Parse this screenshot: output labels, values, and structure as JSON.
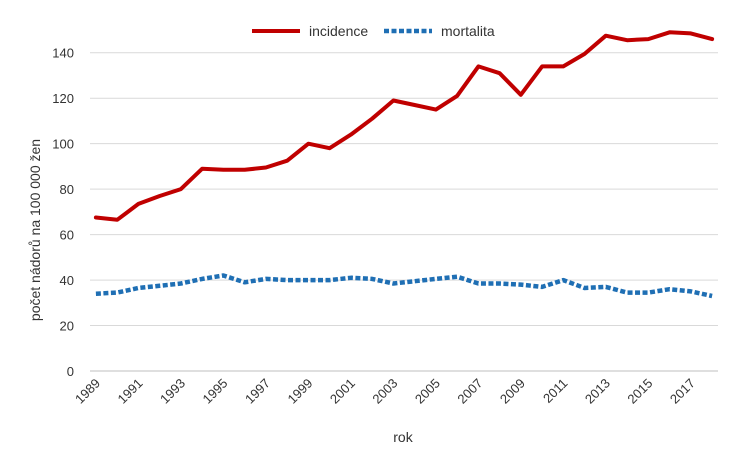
{
  "chart_data": {
    "type": "line",
    "title": "",
    "xlabel": "rok",
    "ylabel": "počet nádorů na 100 000 žen",
    "ylim": [
      0,
      150
    ],
    "yticks": [
      0,
      20,
      40,
      60,
      80,
      100,
      120,
      140
    ],
    "xlim": [
      1989,
      2018
    ],
    "xticks": [
      "1989",
      "1991",
      "1993",
      "1995",
      "1997",
      "1999",
      "2001",
      "2003",
      "2005",
      "2007",
      "2009",
      "2011",
      "2013",
      "2015",
      "2017"
    ],
    "x": [
      1989,
      1990,
      1991,
      1992,
      1993,
      1994,
      1995,
      1996,
      1997,
      1998,
      1999,
      2000,
      2001,
      2002,
      2003,
      2004,
      2005,
      2006,
      2007,
      2008,
      2009,
      2010,
      2011,
      2012,
      2013,
      2014,
      2015,
      2016,
      2017,
      2018
    ],
    "grid": "horizontal",
    "legend_position": "top",
    "series": [
      {
        "name": "incidence",
        "color": "#c00000",
        "style": "solid",
        "values": [
          67.5,
          66.5,
          73.5,
          77,
          80,
          89,
          88.5,
          88.5,
          89.5,
          92.5,
          100,
          98,
          104,
          111,
          119,
          117,
          115,
          121,
          134,
          131,
          121.5,
          134,
          134,
          139.5,
          147.5,
          145.5,
          146,
          149,
          148.5,
          146
        ]
      },
      {
        "name": "mortalita",
        "color": "#1f6fb4",
        "style": "dotted",
        "values": [
          34,
          34.5,
          36.5,
          37.5,
          38.5,
          40.5,
          42,
          39,
          40.5,
          40,
          40,
          40,
          41,
          40.5,
          38.5,
          39.5,
          40.5,
          41.5,
          38.5,
          38.5,
          38,
          37,
          40,
          36.5,
          37,
          34.5,
          34.5,
          36,
          35,
          33
        ]
      }
    ]
  }
}
